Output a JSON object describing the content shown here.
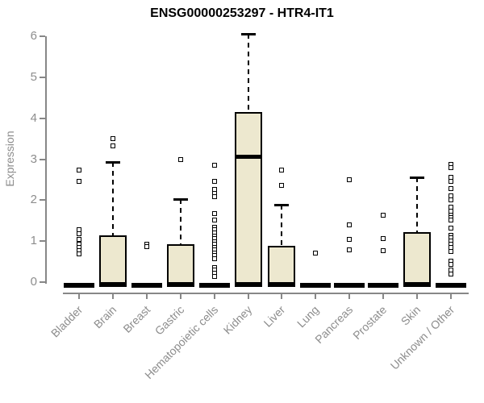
{
  "chart_data": {
    "type": "boxplot",
    "title": "ENSG00000253297 - HTR4-IT1",
    "xlabel": "",
    "ylabel": "Expression",
    "ylim": [
      0,
      6
    ],
    "yticks": [
      0,
      1,
      2,
      3,
      4,
      5,
      6
    ],
    "grid": false,
    "legend": false,
    "box_fill": "#EDE8CF",
    "axis_color": "#878787",
    "label_color": "#8d8d8d",
    "categories": [
      {
        "name": "Bladder",
        "kind": "flat",
        "q1": 0,
        "median": 0,
        "q3": 0,
        "whisker_low": 0,
        "whisker_high": 0,
        "outliers": [
          2.73,
          2.46,
          1.28,
          1.19,
          1.05,
          0.92,
          0.84,
          0.77,
          0.69
        ]
      },
      {
        "name": "Brain",
        "kind": "box",
        "q1": 0,
        "median": 0,
        "q3": 1.14,
        "whisker_low": 0,
        "whisker_high": 2.94,
        "outliers": [
          3.51,
          3.32
        ]
      },
      {
        "name": "Breast",
        "kind": "flat",
        "q1": 0,
        "median": 0,
        "q3": 0,
        "whisker_low": 0,
        "whisker_high": 0,
        "outliers": [
          0.92,
          0.86
        ]
      },
      {
        "name": "Gastric",
        "kind": "box",
        "q1": 0,
        "median": 0,
        "q3": 0.93,
        "whisker_low": 0,
        "whisker_high": 2.03,
        "outliers": [
          2.99
        ]
      },
      {
        "name": "Hematopoietic cells",
        "kind": "flat",
        "q1": 0,
        "median": 0,
        "q3": 0,
        "whisker_low": 0,
        "whisker_high": 0,
        "outliers": [
          2.85,
          2.46,
          2.26,
          2.17,
          2.09,
          1.67,
          1.51,
          1.34,
          1.27,
          1.2,
          1.13,
          1.06,
          0.99,
          0.92,
          0.85,
          0.78,
          0.71,
          0.64,
          0.57,
          0.36,
          0.29,
          0.22,
          0.14
        ]
      },
      {
        "name": "Kidney",
        "kind": "box",
        "q1": 0,
        "median": 3.07,
        "q3": 4.15,
        "whisker_low": 0,
        "whisker_high": 6.05,
        "outliers": []
      },
      {
        "name": "Liver",
        "kind": "box",
        "q1": 0,
        "median": 0,
        "q3": 0.89,
        "whisker_low": 0,
        "whisker_high": 1.89,
        "outliers": [
          2.74,
          2.37
        ]
      },
      {
        "name": "Lung",
        "kind": "flat",
        "q1": 0,
        "median": 0,
        "q3": 0,
        "whisker_low": 0,
        "whisker_high": 0,
        "outliers": [
          0.7
        ]
      },
      {
        "name": "Pancreas",
        "kind": "flat",
        "q1": 0,
        "median": 0,
        "q3": 0,
        "whisker_low": 0,
        "whisker_high": 0,
        "outliers": [
          2.5,
          1.39,
          1.05,
          0.79
        ]
      },
      {
        "name": "Prostate",
        "kind": "flat",
        "q1": 0,
        "median": 0,
        "q3": 0,
        "whisker_low": 0,
        "whisker_high": 0,
        "outliers": [
          1.63,
          1.07,
          0.77
        ]
      },
      {
        "name": "Skin",
        "kind": "box",
        "q1": 0,
        "median": 0,
        "q3": 1.21,
        "whisker_low": 0,
        "whisker_high": 2.56,
        "outliers": []
      },
      {
        "name": "Unknown / Other",
        "kind": "flat",
        "q1": 0,
        "median": 0,
        "q3": 0,
        "whisker_low": 0,
        "whisker_high": 0,
        "outliers": [
          2.88,
          2.79,
          2.56,
          2.46,
          2.29,
          2.1,
          2.0,
          1.83,
          1.74,
          1.64,
          1.57,
          1.51,
          1.31,
          1.15,
          1.08,
          1.0,
          0.92,
          0.85,
          0.75,
          0.52,
          0.43,
          0.3,
          0.2
        ]
      }
    ]
  }
}
